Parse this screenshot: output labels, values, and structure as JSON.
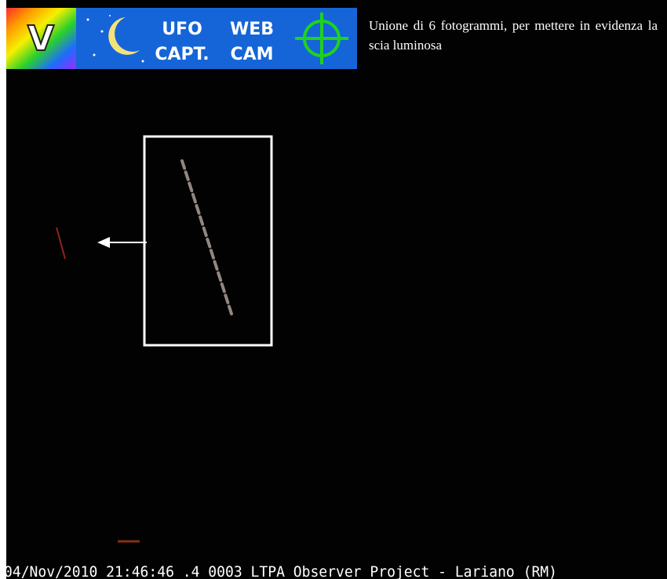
{
  "header": {
    "logos": [
      {
        "label": "V"
      },
      {
        "label": "UFO"
      },
      {
        "label": "CAPT."
      },
      {
        "label": "WEB"
      },
      {
        "label": "CAM"
      }
    ],
    "caption": "Unione di 6 fotogrammi, per mettere in evidenza la scia luminosa"
  },
  "footer": {
    "timestamp": "04/Nov/2010 21:46:46 .4 0003 LTPA Observer Project - Lariano (RM)"
  }
}
